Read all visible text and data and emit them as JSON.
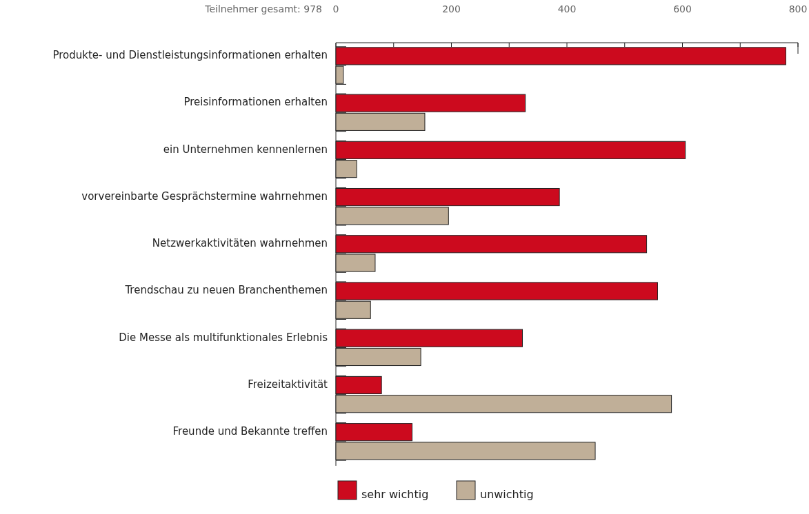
{
  "chart_data": {
    "type": "bar",
    "orientation": "horizontal",
    "categories": [
      "Produkte- und Dienstleistungsinformationen erhalten",
      "Preisinformationen erhalten",
      "ein Unternehmen kennenlernen",
      "vorvereinbarte Gesprächstermine wahrnehmen",
      "Netzwerkaktivitäten wahrnehmen",
      "Trendschau zu neuen Branchenthemen",
      "Die Messe als multifunktionales Erlebnis",
      "Freizeitaktivität",
      "Freunde und Bekannte treffen"
    ],
    "series": [
      {
        "name": "sehr wichtig",
        "color": "#cc0a1e",
        "values": [
          779,
          328,
          605,
          387,
          538,
          557,
          323,
          79,
          132
        ]
      },
      {
        "name": "unwichtig",
        "color": "#c0af98",
        "values": [
          13,
          154,
          36,
          195,
          68,
          60,
          147,
          581,
          449
        ]
      }
    ],
    "xlim": [
      0,
      800
    ],
    "xticks": [
      0,
      {
        "value": 100,
        "label": null
      },
      200,
      {
        "value": 300,
        "label": null
      },
      400,
      {
        "value": 500,
        "label": null
      },
      600,
      {
        "value": 700,
        "label": null
      },
      800
    ],
    "annotations": [
      "Teilnehmer gesamt: 978"
    ],
    "legend": "bottom",
    "grid": false
  }
}
